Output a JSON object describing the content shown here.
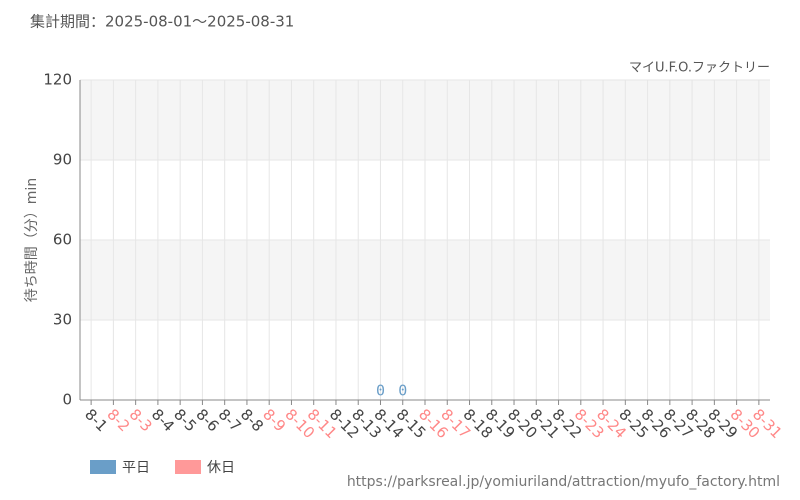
{
  "chart_data": {
    "type": "bar",
    "subtitle": "集計期間：2025-08-01～2025-08-31",
    "title": "マイU.F.O.ファクトリー",
    "y_label": "待ち時間（分）min",
    "source": "https://parksreal.jp/yomiuriland/attraction/myufo_factory.html",
    "categories": [
      "8-1",
      "8-2",
      "8-3",
      "8-4",
      "8-5",
      "8-6",
      "8-7",
      "8-8",
      "8-9",
      "8-10",
      "8-11",
      "8-12",
      "8-13",
      "8-14",
      "8-15",
      "8-16",
      "8-17",
      "8-18",
      "8-19",
      "8-20",
      "8-21",
      "8-22",
      "8-23",
      "8-24",
      "8-25",
      "8-26",
      "8-27",
      "8-28",
      "8-29",
      "8-30",
      "8-31"
    ],
    "category_colors": [
      "#444",
      "#f88",
      "#f88",
      "#444",
      "#444",
      "#444",
      "#444",
      "#444",
      "#f88",
      "#f88",
      "#f88",
      "#444",
      "#444",
      "#444",
      "#444",
      "#f88",
      "#f88",
      "#444",
      "#444",
      "#444",
      "#444",
      "#444",
      "#f88",
      "#f88",
      "#444",
      "#444",
      "#444",
      "#444",
      "#444",
      "#f88",
      "#f88"
    ],
    "series": [
      {
        "name": "平日",
        "color": "#6a9ec8",
        "values": [
          null,
          null,
          null,
          null,
          null,
          null,
          null,
          null,
          null,
          null,
          null,
          null,
          null,
          0,
          0,
          null,
          null,
          null,
          null,
          null,
          null,
          null,
          null,
          null,
          null,
          null,
          null,
          null,
          null,
          null,
          null
        ]
      },
      {
        "name": "休日",
        "color": "#ff9999",
        "values": [
          null,
          null,
          null,
          null,
          null,
          null,
          null,
          null,
          null,
          null,
          null,
          null,
          null,
          null,
          null,
          null,
          null,
          null,
          null,
          null,
          null,
          null,
          null,
          null,
          null,
          null,
          null,
          null,
          null,
          null,
          null
        ]
      }
    ],
    "ylim": [
      0,
      120
    ],
    "yticks": [
      0,
      30,
      60,
      90,
      120
    ],
    "grid": true
  }
}
